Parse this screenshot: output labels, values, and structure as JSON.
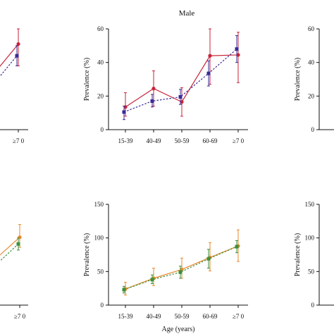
{
  "colors": {
    "red": "#c8243a",
    "navy": "#3b2a94",
    "orange": "#e8892c",
    "green": "#3d8f3a",
    "axis": "#111111"
  },
  "chart_data": [
    {
      "id": "top-left",
      "type": "line",
      "title": "",
      "xlabel": "",
      "ylabel": "",
      "ylim": [
        0,
        60
      ],
      "categories": [
        "≥7 0"
      ],
      "series": [
        {
          "color": "red",
          "dash": false,
          "marker": "circle",
          "values": [
            51
          ],
          "err_low": [
            38
          ],
          "err_high": [
            60
          ]
        },
        {
          "color": "navy",
          "dash": true,
          "marker": "square",
          "values": [
            44
          ],
          "err_low": [
            38
          ],
          "err_high": [
            50
          ]
        }
      ]
    },
    {
      "id": "top-middle",
      "type": "line",
      "title": "Male",
      "xlabel": "",
      "ylabel": "Prevalence (%)",
      "ylim": [
        0,
        60
      ],
      "yticks": [
        0,
        20,
        40,
        60
      ],
      "categories": [
        "15-39",
        "40-49",
        "50-59",
        "60-69",
        "≥7 0"
      ],
      "series": [
        {
          "color": "red",
          "dash": false,
          "marker": "circle",
          "values": [
            13.5,
            24.5,
            16.5,
            44,
            44.5
          ],
          "err_low": [
            8,
            14,
            8,
            27,
            28
          ],
          "err_high": [
            22,
            35,
            25,
            60,
            58
          ]
        },
        {
          "color": "navy",
          "dash": true,
          "marker": "square",
          "values": [
            10.5,
            17,
            19.5,
            33.5,
            48
          ],
          "err_low": [
            6,
            13.5,
            15,
            26,
            40
          ],
          "err_high": [
            14,
            21,
            24,
            41,
            56
          ]
        }
      ]
    },
    {
      "id": "top-right",
      "type": "line",
      "title": "",
      "xlabel": "",
      "ylabel": "Prevalence (%)",
      "ylim": [
        0,
        60
      ],
      "yticks": [
        0,
        20,
        40,
        60
      ],
      "categories": [],
      "series": []
    },
    {
      "id": "bottom-left",
      "type": "line",
      "title": "",
      "xlabel": "",
      "ylabel": "",
      "ylim": [
        0,
        150
      ],
      "categories": [
        "≥7 0"
      ],
      "series": [
        {
          "color": "orange",
          "dash": false,
          "marker": "circle",
          "values": [
            101
          ],
          "err_low": [
            86
          ],
          "err_high": [
            120
          ]
        },
        {
          "color": "green",
          "dash": true,
          "marker": "square",
          "values": [
            91
          ],
          "err_low": [
            82
          ],
          "err_high": [
            100
          ]
        }
      ]
    },
    {
      "id": "bottom-middle",
      "type": "line",
      "title": "",
      "xlabel": "Age (years)",
      "ylabel": "Prevalence (%)",
      "ylim": [
        0,
        150
      ],
      "yticks": [
        0,
        50,
        100,
        150
      ],
      "categories": [
        "15-39",
        "40-49",
        "50-59",
        "60-69",
        "≥7 0"
      ],
      "series": [
        {
          "color": "orange",
          "dash": false,
          "marker": "circle",
          "values": [
            24,
            40,
            53,
            71,
            88
          ],
          "err_low": [
            15,
            29,
            40,
            51,
            65
          ],
          "err_high": [
            34,
            55,
            70,
            93,
            112
          ]
        },
        {
          "color": "green",
          "dash": true,
          "marker": "square",
          "values": [
            23,
            38,
            49,
            69,
            87
          ],
          "err_low": [
            18,
            32,
            40,
            55,
            78
          ],
          "err_high": [
            28,
            45,
            58,
            83,
            96
          ]
        }
      ]
    },
    {
      "id": "bottom-right",
      "type": "line",
      "title": "",
      "xlabel": "",
      "ylabel": "Prevalence (%)",
      "ylim": [
        0,
        150
      ],
      "yticks": [
        0,
        50,
        100,
        150
      ],
      "categories": [],
      "series": []
    }
  ]
}
